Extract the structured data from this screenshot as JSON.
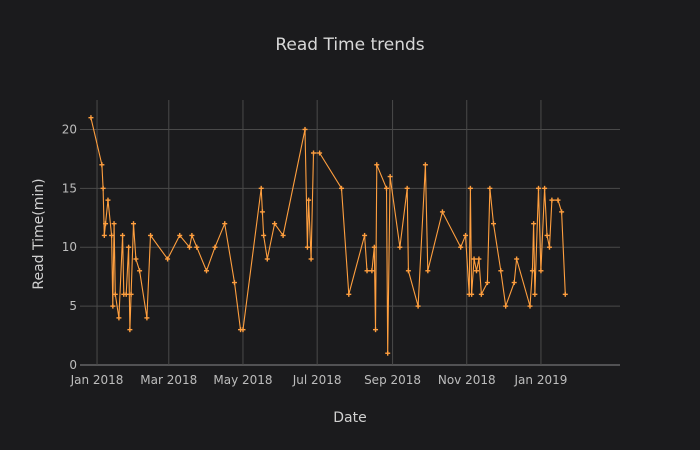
{
  "chart_data": {
    "type": "line",
    "title": "Read Time trends",
    "xlabel": "Date",
    "ylabel": "Read Time(min)",
    "xlim": [
      "2017-12-18",
      "2019-03-07"
    ],
    "ylim": [
      0,
      22.5
    ],
    "x_ticks": [
      {
        "date": "2018-01-01",
        "label": "Jan 2018"
      },
      {
        "date": "2018-03-01",
        "label": "Mar 2018"
      },
      {
        "date": "2018-05-01",
        "label": "May 2018"
      },
      {
        "date": "2018-07-01",
        "label": "Jul 2018"
      },
      {
        "date": "2018-09-01",
        "label": "Sep 2018"
      },
      {
        "date": "2018-11-01",
        "label": "Nov 2018"
      },
      {
        "date": "2019-01-01",
        "label": "Jan 2019"
      }
    ],
    "y_ticks": [
      0,
      5,
      10,
      15,
      20
    ],
    "grid": true,
    "marker": "cross",
    "color": "#ff9f3f",
    "series": [
      {
        "x": [
          "2017-12-27",
          "2018-01-05",
          "2018-01-06",
          "2018-01-07",
          "2018-01-08",
          "2018-01-10",
          "2018-01-13",
          "2018-01-14",
          "2018-01-15",
          "2018-01-16",
          "2018-01-19",
          "2018-01-22",
          "2018-01-23",
          "2018-01-25",
          "2018-01-27",
          "2018-01-28",
          "2018-01-29",
          "2018-01-31",
          "2018-02-02",
          "2018-02-05",
          "2018-02-11",
          "2018-02-14",
          "2018-02-28",
          "2018-03-10",
          "2018-03-18",
          "2018-03-20",
          "2018-03-24",
          "2018-04-01",
          "2018-04-08",
          "2018-04-16",
          "2018-04-24",
          "2018-04-29",
          "2018-05-01",
          "2018-05-16",
          "2018-05-17",
          "2018-05-18",
          "2018-05-21",
          "2018-05-27",
          "2018-06-03",
          "2018-06-21",
          "2018-06-23",
          "2018-06-24",
          "2018-06-26",
          "2018-06-28",
          "2018-07-03",
          "2018-07-21",
          "2018-07-27",
          "2018-08-09",
          "2018-08-11",
          "2018-08-15",
          "2018-08-17",
          "2018-08-18",
          "2018-08-19",
          "2018-08-27",
          "2018-08-28",
          "2018-08-30",
          "2018-09-07",
          "2018-09-13",
          "2018-09-14",
          "2018-09-22",
          "2018-09-28",
          "2018-09-30",
          "2018-10-12",
          "2018-10-27",
          "2018-10-31",
          "2018-11-03",
          "2018-11-04",
          "2018-11-05",
          "2018-11-07",
          "2018-11-09",
          "2018-11-11",
          "2018-11-13",
          "2018-11-18",
          "2018-11-20",
          "2018-11-23",
          "2018-11-29",
          "2018-12-03",
          "2018-12-10",
          "2018-12-12",
          "2018-12-23",
          "2018-12-25",
          "2018-12-26",
          "2018-12-27",
          "2018-12-30",
          "2019-01-01",
          "2019-01-04",
          "2019-01-06",
          "2019-01-08",
          "2019-01-10",
          "2019-01-15",
          "2019-01-18",
          "2019-01-21"
        ],
        "y": [
          21,
          17,
          15,
          11,
          12,
          14,
          11,
          5,
          12,
          6,
          4,
          11,
          6,
          6,
          10,
          3,
          6,
          12,
          9,
          8,
          4,
          11,
          9,
          11,
          10,
          11,
          10,
          8,
          10,
          12,
          7,
          3,
          3,
          15,
          13,
          11,
          9,
          12,
          11,
          20,
          10,
          14,
          9,
          18,
          18,
          15,
          6,
          11,
          8,
          8,
          10,
          3,
          17,
          15,
          1,
          16,
          10,
          15,
          8,
          5,
          17,
          8,
          13,
          10,
          11,
          6,
          15,
          6,
          9,
          8,
          9,
          6,
          7,
          15,
          12,
          8,
          5,
          7,
          9,
          5,
          8,
          12,
          6,
          15,
          8,
          15,
          11,
          10,
          14,
          14,
          13,
          6
        ]
      }
    ]
  }
}
